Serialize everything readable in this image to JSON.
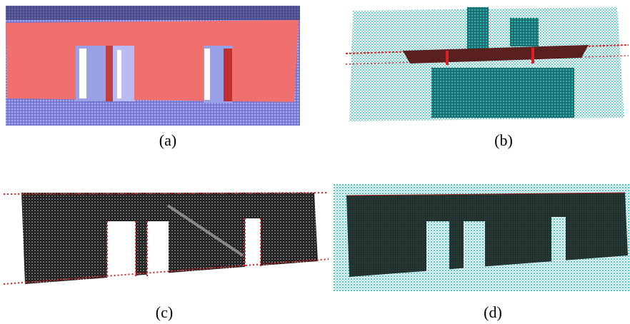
{
  "figure": {
    "panels": [
      {
        "id": "a",
        "caption": "(a)"
      },
      {
        "id": "b",
        "caption": "(b)"
      },
      {
        "id": "c",
        "caption": "(c)"
      },
      {
        "id": "d",
        "caption": "(d)"
      }
    ]
  },
  "colors": {
    "wall_fill": "#f07070",
    "point_cloud_blue": "#8a8ef0",
    "point_cloud_cyan": "#28c8c8",
    "point_cloud_dark": "#1a2a28",
    "boundary_red": "#e02020"
  }
}
